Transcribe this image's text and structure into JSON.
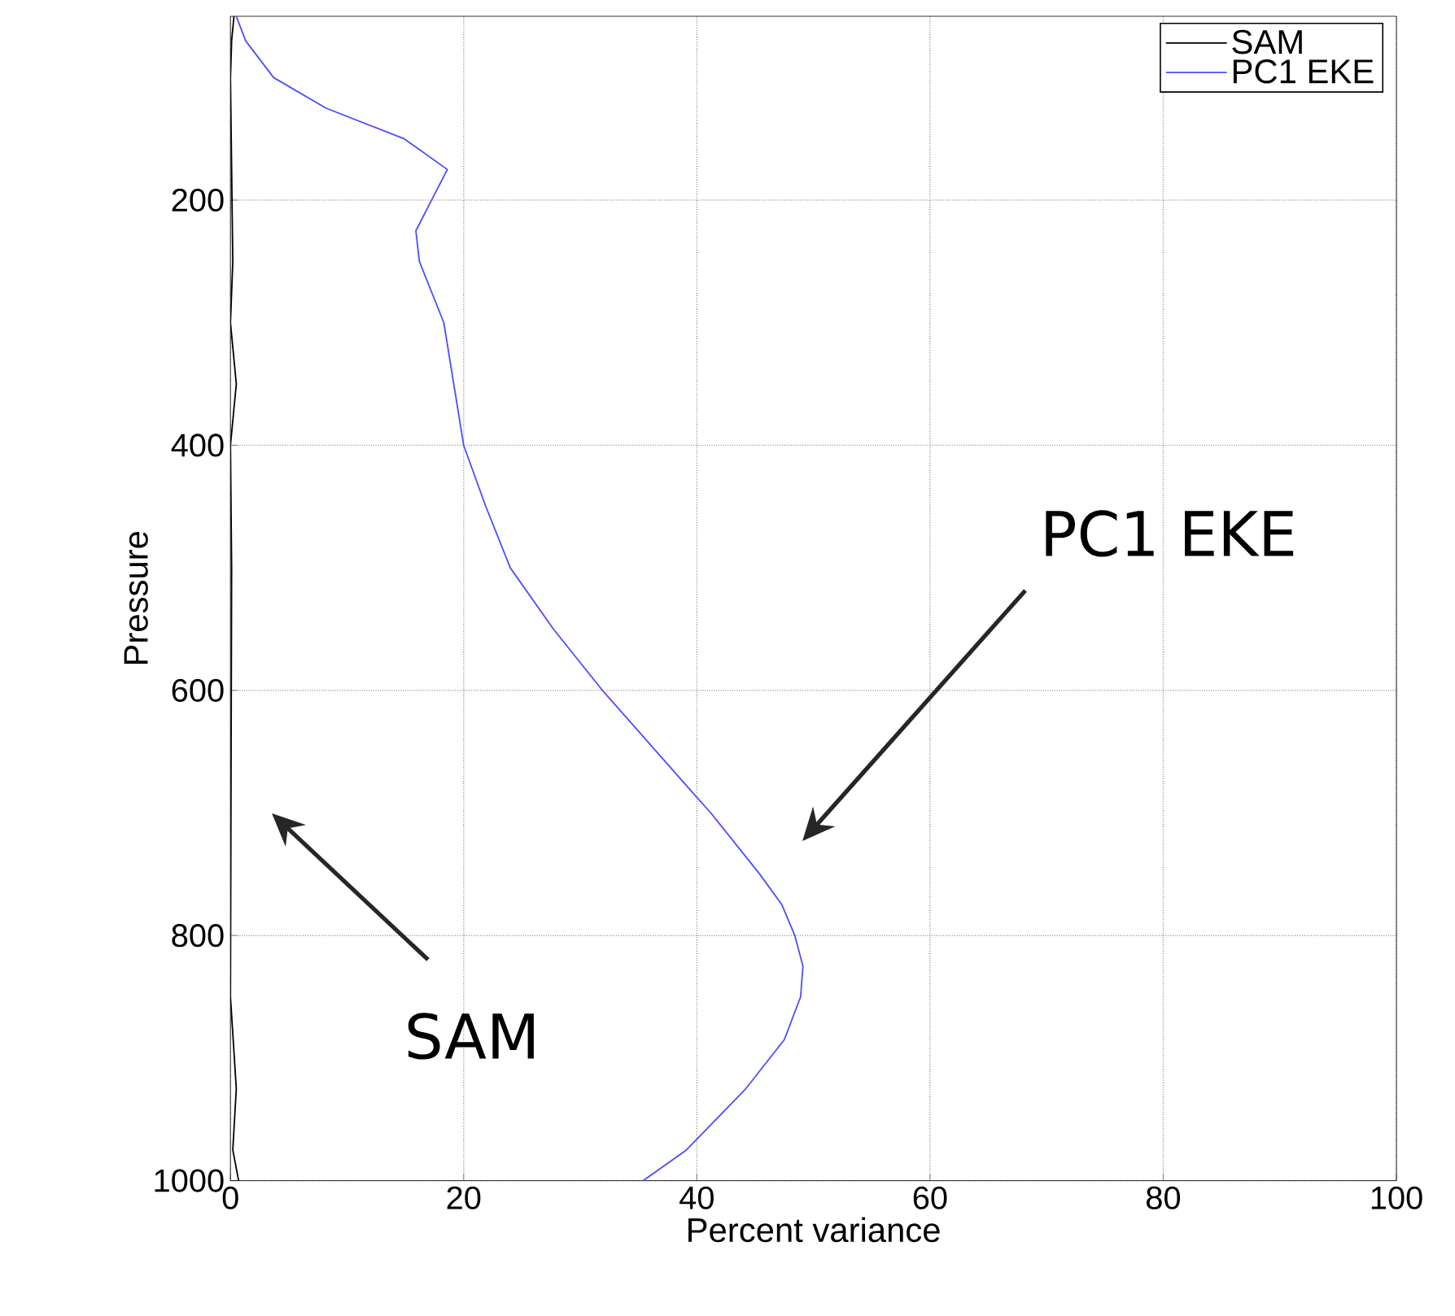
{
  "chart_data": {
    "type": "line",
    "xlabel": "Percent variance",
    "ylabel": "Pressure",
    "xlim": [
      0,
      100
    ],
    "ylim": [
      1000,
      50
    ],
    "xticks": [
      0,
      20,
      40,
      60,
      80,
      100
    ],
    "yticks": [
      200,
      400,
      600,
      800,
      1000
    ],
    "grid": true,
    "legend": "top right",
    "line_style": "solid",
    "marker": "none",
    "series": [
      {
        "name": "SAM",
        "color": "#000000",
        "x": [
          0.3,
          0.1,
          0,
          0.2,
          0,
          0.5,
          0,
          0.1,
          0,
          0.5,
          0.2,
          0.7
        ],
        "values": [
          50,
          70,
          100,
          250,
          300,
          350,
          400,
          500,
          850,
          925,
          975,
          1000
        ]
      },
      {
        "name": "PC1 EKE",
        "color": "#4d4dff",
        "x": [
          0.5,
          1.3,
          3.7,
          8.2,
          14.9,
          18.6,
          15.9,
          16.2,
          18.3,
          20.0,
          21.9,
          24.0,
          27.7,
          31.9,
          39.6,
          41.2,
          45.4,
          47.3,
          48.4,
          49.1,
          48.9,
          47.5,
          44.2,
          39.1,
          35.4
        ],
        "values": [
          50,
          70,
          100,
          125,
          150,
          175,
          225,
          250,
          300,
          400,
          450,
          500,
          550,
          600,
          683,
          700,
          750,
          775,
          800,
          825,
          850,
          885,
          925,
          975,
          1000
        ]
      }
    ],
    "annotations": [
      "SAM",
      "PC1 EKE"
    ]
  }
}
